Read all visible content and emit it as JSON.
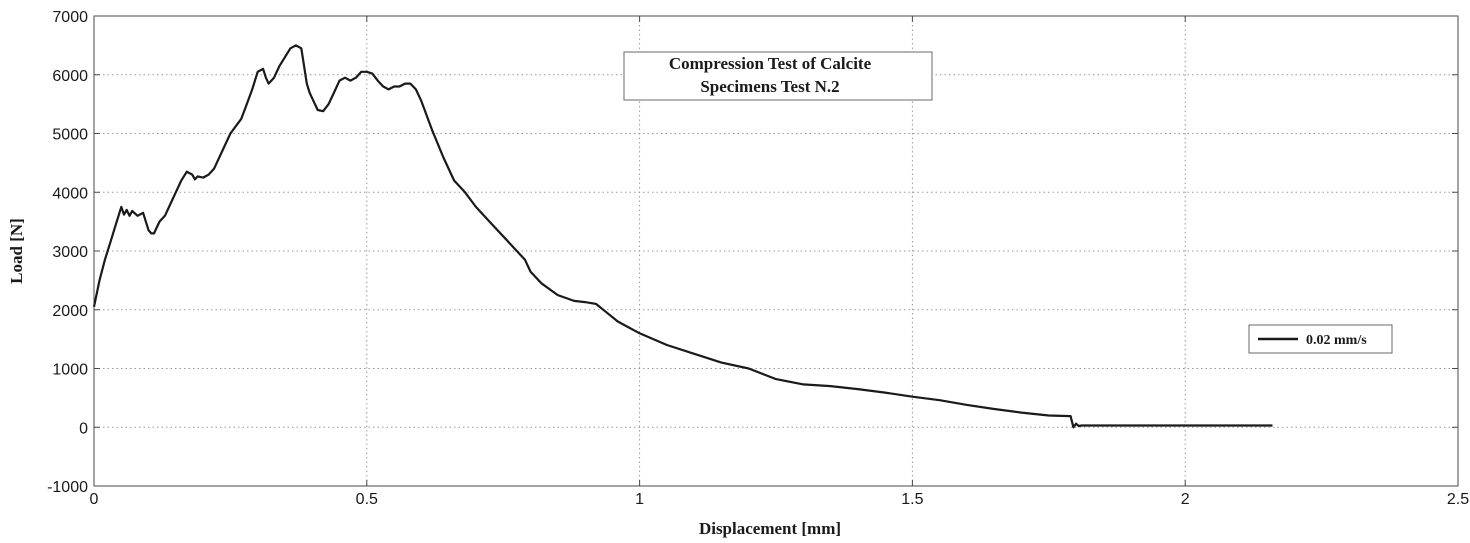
{
  "chart_data": {
    "type": "line",
    "title_lines": [
      "Compression Test of Calcite",
      "Specimens Test N.2"
    ],
    "xlabel": "Displacement [mm]",
    "ylabel": "Load [N]",
    "xlim": [
      0,
      2.5
    ],
    "ylim": [
      -1000,
      7000
    ],
    "xticks": [
      0,
      0.5,
      1,
      1.5,
      2,
      2.5
    ],
    "xtick_labels": [
      "0",
      "0.5",
      "1",
      "1.5",
      "2",
      "2.5"
    ],
    "yticks": [
      -1000,
      0,
      1000,
      2000,
      3000,
      4000,
      5000,
      6000,
      7000
    ],
    "ytick_labels": [
      "-1000",
      "0",
      "1000",
      "2000",
      "3000",
      "4000",
      "5000",
      "6000",
      "7000"
    ],
    "grid": true,
    "legend_position": "right",
    "line_color": "#1a1a1a",
    "series": [
      {
        "name": "0.02 mm/s",
        "x": [
          0,
          0.01,
          0.02,
          0.03,
          0.04,
          0.05,
          0.055,
          0.06,
          0.065,
          0.07,
          0.08,
          0.09,
          0.1,
          0.105,
          0.11,
          0.12,
          0.13,
          0.14,
          0.15,
          0.16,
          0.17,
          0.18,
          0.185,
          0.19,
          0.2,
          0.21,
          0.22,
          0.23,
          0.25,
          0.27,
          0.28,
          0.29,
          0.3,
          0.31,
          0.315,
          0.32,
          0.33,
          0.34,
          0.35,
          0.36,
          0.37,
          0.38,
          0.39,
          0.395,
          0.4,
          0.41,
          0.42,
          0.43,
          0.44,
          0.45,
          0.46,
          0.47,
          0.48,
          0.49,
          0.5,
          0.51,
          0.52,
          0.53,
          0.54,
          0.55,
          0.56,
          0.57,
          0.58,
          0.59,
          0.6,
          0.62,
          0.64,
          0.66,
          0.68,
          0.7,
          0.73,
          0.76,
          0.79,
          0.8,
          0.82,
          0.85,
          0.88,
          0.9,
          0.92,
          0.94,
          0.96,
          1.0,
          1.05,
          1.1,
          1.15,
          1.2,
          1.25,
          1.3,
          1.35,
          1.4,
          1.45,
          1.5,
          1.55,
          1.6,
          1.65,
          1.7,
          1.75,
          1.79,
          1.795,
          1.8,
          1.805,
          1.81,
          1.85,
          1.9,
          2.0,
          2.1,
          2.16
        ],
        "y": [
          2050,
          2500,
          2850,
          3150,
          3450,
          3750,
          3620,
          3700,
          3600,
          3680,
          3600,
          3650,
          3350,
          3300,
          3300,
          3500,
          3600,
          3800,
          4000,
          4200,
          4350,
          4300,
          4220,
          4270,
          4250,
          4300,
          4400,
          4600,
          5000,
          5250,
          5500,
          5750,
          6050,
          6100,
          5950,
          5850,
          5950,
          6150,
          6300,
          6450,
          6500,
          6450,
          5850,
          5700,
          5600,
          5400,
          5380,
          5500,
          5700,
          5900,
          5950,
          5900,
          5950,
          6050,
          6050,
          6020,
          5900,
          5800,
          5750,
          5800,
          5800,
          5850,
          5850,
          5750,
          5550,
          5050,
          4600,
          4200,
          4000,
          3750,
          3450,
          3150,
          2850,
          2650,
          2450,
          2250,
          2150,
          2130,
          2100,
          1950,
          1800,
          1600,
          1400,
          1250,
          1100,
          1000,
          820,
          730,
          700,
          650,
          590,
          520,
          460,
          380,
          310,
          250,
          200,
          190,
          0,
          60,
          20,
          30,
          30,
          30,
          30,
          30,
          30
        ]
      }
    ]
  }
}
